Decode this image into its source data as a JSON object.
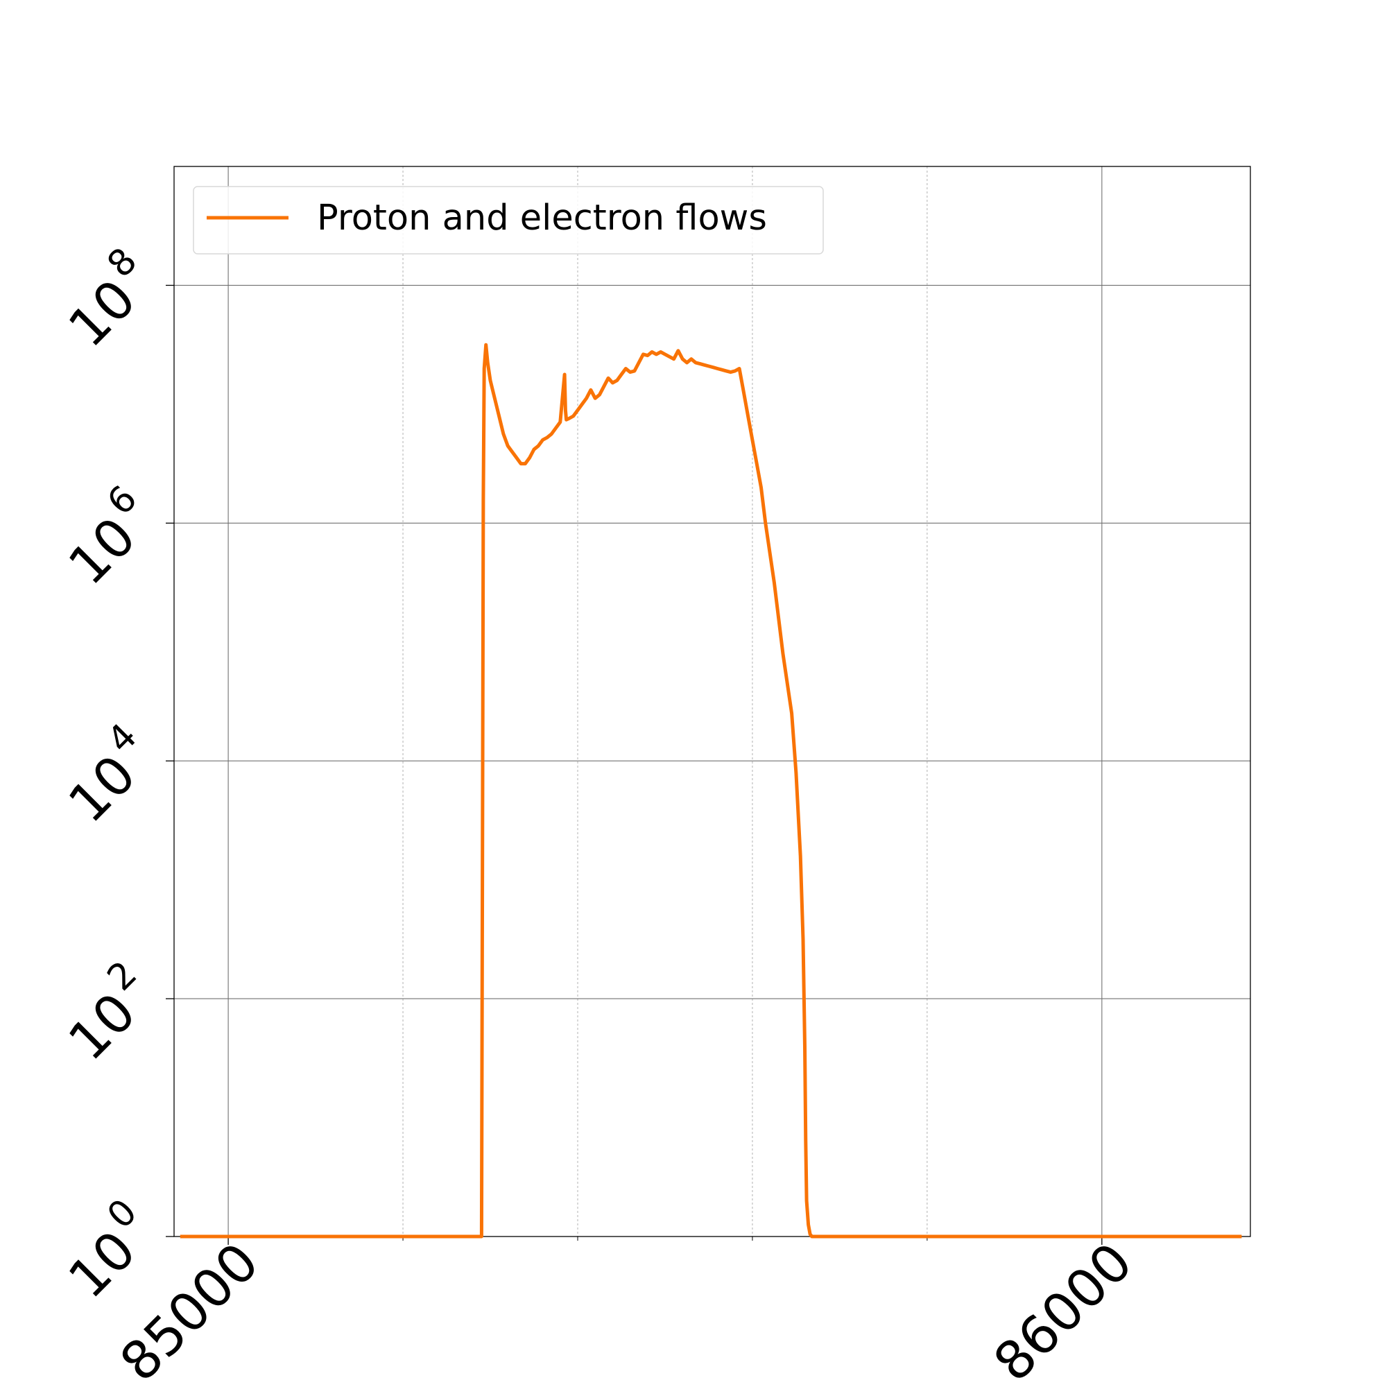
{
  "chart_data": {
    "type": "line",
    "title": "",
    "xlabel": "",
    "ylabel": "",
    "xlim": [
      84938,
      86170
    ],
    "ylim_exponent": [
      0,
      9
    ],
    "y_scale": "log",
    "x_ticks": [
      {
        "value": 85000,
        "label": "85000"
      },
      {
        "value": 86000,
        "label": "86000"
      }
    ],
    "x_minor_ticks": [
      85200,
      85400,
      85600,
      85800
    ],
    "y_ticks": [
      {
        "exp": 0,
        "base": "10",
        "sup": "0"
      },
      {
        "exp": 2,
        "base": "10",
        "sup": "2"
      },
      {
        "exp": 4,
        "base": "10",
        "sup": "4"
      },
      {
        "exp": 6,
        "base": "10",
        "sup": "6"
      },
      {
        "exp": 8,
        "base": "10",
        "sup": "8"
      }
    ],
    "grid": true,
    "legend_position": "top-left",
    "series": [
      {
        "name": "Proton and electron flows",
        "color": "#f97306",
        "x": [
          84945,
          85290,
          85292,
          85293,
          85295,
          85297,
          85300,
          85305,
          85310,
          85315,
          85320,
          85325,
          85330,
          85335,
          85340,
          85345,
          85350,
          85355,
          85360,
          85365,
          85370,
          85375,
          85380,
          85385,
          85386,
          85387,
          85390,
          85395,
          85400,
          85405,
          85410,
          85415,
          85420,
          85425,
          85430,
          85435,
          85440,
          85445,
          85450,
          85455,
          85460,
          85465,
          85470,
          85475,
          85480,
          85485,
          85490,
          85495,
          85500,
          85505,
          85510,
          85515,
          85520,
          85525,
          85530,
          85535,
          85540,
          85545,
          85550,
          85555,
          85560,
          85565,
          85570,
          85575,
          85580,
          85585,
          85590,
          85595,
          85600,
          85605,
          85610,
          85615,
          85625,
          85635,
          85645,
          85650,
          85655,
          85658,
          85660,
          85661,
          85662,
          85664,
          85666,
          85668,
          85670,
          86160
        ],
        "y_exp": [
          0,
          0,
          6.2,
          7.3,
          7.5,
          7.35,
          7.2,
          7.05,
          6.9,
          6.75,
          6.65,
          6.6,
          6.55,
          6.5,
          6.5,
          6.55,
          6.62,
          6.65,
          6.7,
          6.72,
          6.75,
          6.8,
          6.85,
          7.25,
          6.95,
          6.87,
          6.88,
          6.9,
          6.95,
          7.0,
          7.05,
          7.12,
          7.05,
          7.08,
          7.15,
          7.22,
          7.18,
          7.2,
          7.25,
          7.3,
          7.27,
          7.28,
          7.35,
          7.42,
          7.41,
          7.44,
          7.42,
          7.44,
          7.42,
          7.4,
          7.38,
          7.45,
          7.38,
          7.35,
          7.38,
          7.35,
          7.34,
          7.33,
          7.32,
          7.31,
          7.3,
          7.29,
          7.28,
          7.27,
          7.28,
          7.3,
          7.1,
          6.9,
          6.7,
          6.5,
          6.3,
          6.0,
          5.5,
          4.9,
          4.4,
          3.9,
          3.2,
          2.5,
          1.6,
          0.8,
          0.3,
          0.1,
          0.02,
          0,
          0,
          0
        ]
      }
    ]
  }
}
